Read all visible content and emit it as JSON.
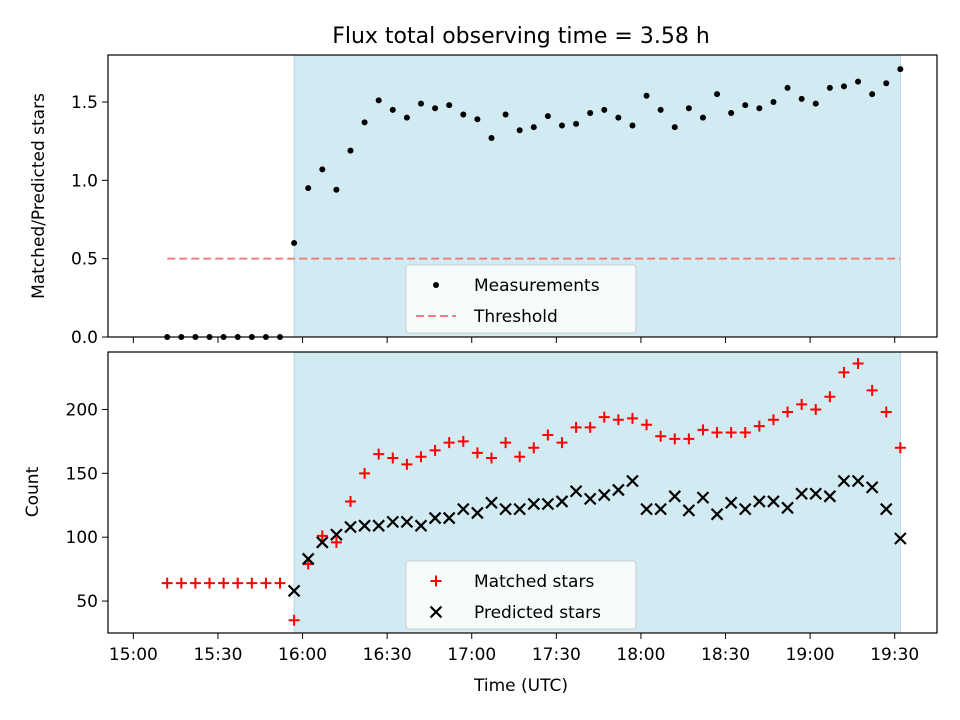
{
  "chart_data": [
    {
      "type": "scatter",
      "title": "Flux total observing time = 3.58 h",
      "xlabel": "",
      "ylabel": "Matched/Predicted stars",
      "ylim": [
        0,
        1.8
      ],
      "yticks": [
        "0.0",
        "0.5",
        "1.0",
        "1.5"
      ],
      "shaded_interval": [
        "15:57",
        "19:32"
      ],
      "shade_color": "#add8e6",
      "legend_position": "lower-center",
      "series": [
        {
          "name": "Measurements",
          "marker": "dot",
          "color": "#000000",
          "x": [
            "15:12",
            "15:17",
            "15:22",
            "15:27",
            "15:32",
            "15:37",
            "15:42",
            "15:47",
            "15:52",
            "15:57",
            "16:02",
            "16:07",
            "16:12",
            "16:17",
            "16:22",
            "16:27",
            "16:32",
            "16:37",
            "16:42",
            "16:47",
            "16:52",
            "16:57",
            "17:02",
            "17:07",
            "17:12",
            "17:17",
            "17:22",
            "17:27",
            "17:32",
            "17:37",
            "17:42",
            "17:47",
            "17:52",
            "17:57",
            "18:02",
            "18:07",
            "18:12",
            "18:17",
            "18:22",
            "18:27",
            "18:32",
            "18:37",
            "18:42",
            "18:47",
            "18:52",
            "18:57",
            "19:02",
            "19:07",
            "19:12",
            "19:17",
            "19:22",
            "19:27",
            "19:32"
          ],
          "y": [
            0,
            0,
            0,
            0,
            0,
            0,
            0,
            0,
            0,
            0.6,
            0.95,
            1.07,
            0.94,
            1.19,
            1.37,
            1.51,
            1.45,
            1.4,
            1.49,
            1.46,
            1.48,
            1.42,
            1.39,
            1.27,
            1.42,
            1.32,
            1.34,
            1.41,
            1.35,
            1.36,
            1.43,
            1.45,
            1.4,
            1.35,
            1.54,
            1.45,
            1.34,
            1.46,
            1.4,
            1.55,
            1.43,
            1.48,
            1.46,
            1.5,
            1.59,
            1.52,
            1.49,
            1.59,
            1.6,
            1.63,
            1.55,
            1.62,
            1.71
          ]
        },
        {
          "name": "Threshold",
          "style": "dashed",
          "color": "#f08080",
          "x": [
            "15:12",
            "19:32"
          ],
          "y": [
            0.5,
            0.5
          ]
        }
      ]
    },
    {
      "type": "scatter",
      "title": "",
      "xlabel": "Time (UTC)",
      "ylabel": "Count",
      "ylim": [
        25,
        245
      ],
      "yticks": [
        "50",
        "100",
        "150",
        "200"
      ],
      "xticks": [
        "15:00",
        "15:30",
        "16:00",
        "16:30",
        "17:00",
        "17:30",
        "18:00",
        "18:30",
        "19:00",
        "19:30"
      ],
      "shaded_interval": [
        "15:57",
        "19:32"
      ],
      "shade_color": "#add8e6",
      "legend_position": "lower-center",
      "series": [
        {
          "name": "Matched stars",
          "marker": "plus",
          "color": "#ff0000",
          "x": [
            "15:12",
            "15:17",
            "15:22",
            "15:27",
            "15:32",
            "15:37",
            "15:42",
            "15:47",
            "15:52",
            "15:57",
            "16:02",
            "16:07",
            "16:12",
            "16:17",
            "16:22",
            "16:27",
            "16:32",
            "16:37",
            "16:42",
            "16:47",
            "16:52",
            "16:57",
            "17:02",
            "17:07",
            "17:12",
            "17:17",
            "17:22",
            "17:27",
            "17:32",
            "17:37",
            "17:42",
            "17:47",
            "17:52",
            "17:57",
            "18:02",
            "18:07",
            "18:12",
            "18:17",
            "18:22",
            "18:27",
            "18:32",
            "18:37",
            "18:42",
            "18:47",
            "18:52",
            "18:57",
            "19:02",
            "19:07",
            "19:12",
            "19:17",
            "19:22",
            "19:27",
            "19:32"
          ],
          "y": [
            64,
            64,
            64,
            64,
            64,
            64,
            64,
            64,
            64,
            35,
            79,
            101,
            96,
            128,
            150,
            165,
            162,
            157,
            163,
            168,
            174,
            175,
            166,
            162,
            174,
            163,
            170,
            180,
            174,
            186,
            186,
            194,
            192,
            193,
            188,
            179,
            177,
            177,
            184,
            182,
            182,
            182,
            187,
            192,
            198,
            204,
            200,
            210,
            229,
            236,
            215,
            198,
            170
          ]
        },
        {
          "name": "Predicted stars",
          "marker": "x",
          "color": "#000000",
          "x": [
            "15:57",
            "16:02",
            "16:07",
            "16:12",
            "16:17",
            "16:22",
            "16:27",
            "16:32",
            "16:37",
            "16:42",
            "16:47",
            "16:52",
            "16:57",
            "17:02",
            "17:07",
            "17:12",
            "17:17",
            "17:22",
            "17:27",
            "17:32",
            "17:37",
            "17:42",
            "17:47",
            "17:52",
            "17:57",
            "18:02",
            "18:07",
            "18:12",
            "18:17",
            "18:22",
            "18:27",
            "18:32",
            "18:37",
            "18:42",
            "18:47",
            "18:52",
            "18:57",
            "19:02",
            "19:07",
            "19:12",
            "19:17",
            "19:22",
            "19:27",
            "19:32"
          ],
          "y": [
            58,
            83,
            96,
            102,
            108,
            109,
            109,
            112,
            112,
            109,
            115,
            115,
            122,
            119,
            127,
            122,
            122,
            126,
            126,
            128,
            136,
            130,
            133,
            137,
            144,
            122,
            122,
            132,
            121,
            131,
            118,
            127,
            122,
            128,
            128,
            123,
            134,
            134,
            132,
            144,
            144,
            139,
            122,
            99
          ]
        }
      ]
    }
  ]
}
